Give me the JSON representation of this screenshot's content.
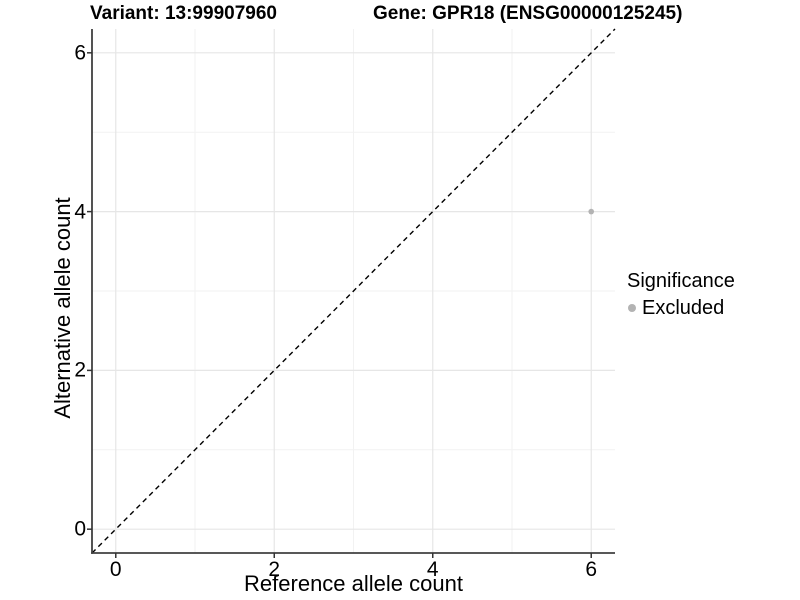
{
  "chart_data": {
    "type": "scatter",
    "title_left": "Variant: 13:99907960",
    "title_right": "Gene: GPR18 (ENSG00000125245)",
    "xlabel": "Reference allele count",
    "ylabel": "Alternative allele count",
    "x_range": [
      -0.3,
      6.3
    ],
    "y_range": [
      -0.3,
      6.3
    ],
    "x_major_ticks": [
      0,
      2,
      4,
      6
    ],
    "y_major_ticks": [
      0,
      2,
      4,
      6
    ],
    "x_minor_ticks": [
      1,
      3,
      5
    ],
    "y_minor_ticks": [
      1,
      3,
      5
    ],
    "grid": "major+minor",
    "series": [
      {
        "name": "Excluded",
        "color": "#b3b3b3",
        "points": [
          {
            "x": 6,
            "y": 4
          }
        ]
      }
    ],
    "reference_line": {
      "type": "identity y=x",
      "style": "dashed",
      "color": "#000000"
    },
    "legend": {
      "title": "Significance",
      "position": "right",
      "items": [
        {
          "label": "Excluded",
          "color": "#b3b3b3"
        }
      ]
    }
  },
  "colors": {
    "background": "#ffffff",
    "grid_major": "#e6e6e6",
    "grid_minor": "#f2f2f2",
    "axis_line": "#404040",
    "tick_mark": "#333333",
    "text": "#000000"
  }
}
